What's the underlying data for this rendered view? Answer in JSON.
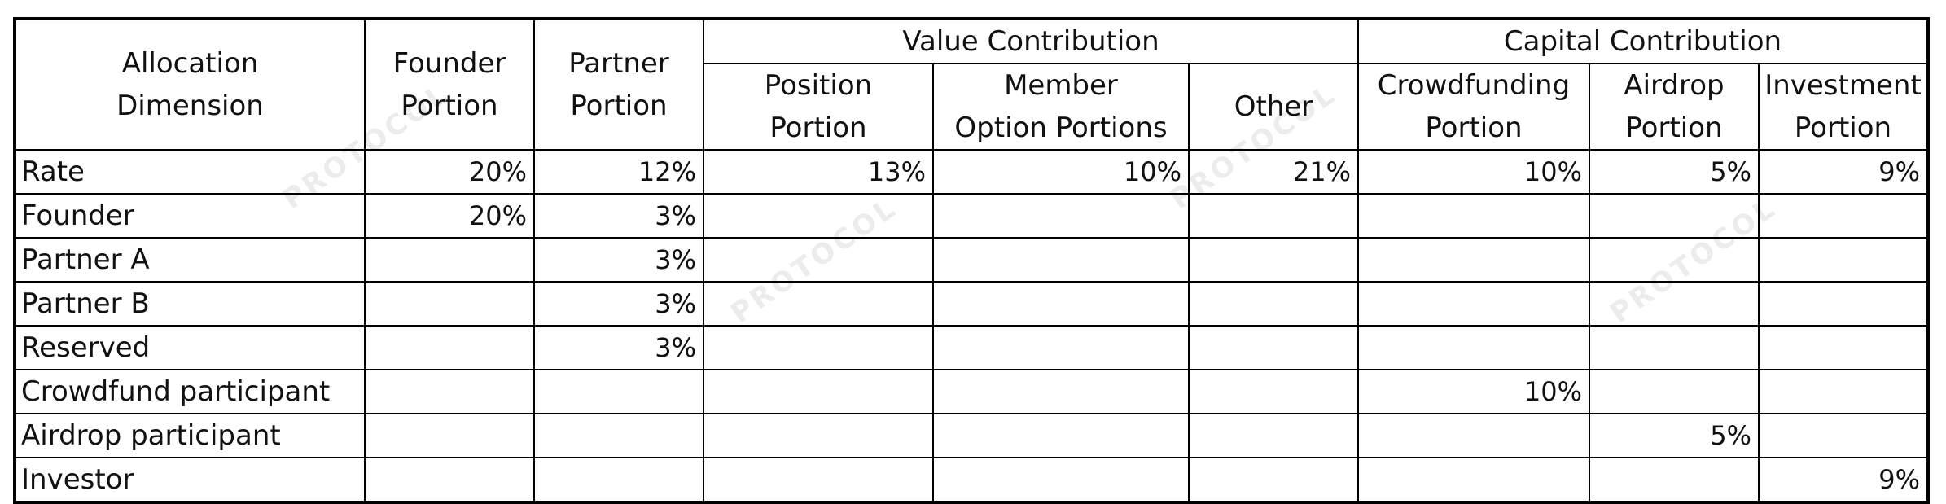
{
  "watermark_text": "PROTOCOL",
  "header": {
    "allocation_dimension": [
      "Allocation",
      "Dimension"
    ],
    "founder_portion": [
      "Founder",
      "Portion"
    ],
    "partner_portion": [
      "Partner",
      "Portion"
    ],
    "value_contribution": "Value Contribution",
    "capital_contribution": "Capital Contribution",
    "position_portion": [
      "Position",
      "Portion"
    ],
    "member_option_portions": [
      "Member",
      "Option Portions"
    ],
    "other": "Other",
    "crowdfunding_portion": [
      "Crowdfunding",
      "Portion"
    ],
    "airdrop_portion": [
      "Airdrop",
      "Portion"
    ],
    "investment_portion": [
      "Investment",
      "Portion"
    ]
  },
  "rows": [
    {
      "label": "Rate",
      "cells": [
        "20%",
        "12%",
        "13%",
        "10%",
        "21%",
        "10%",
        "5%",
        "9%"
      ]
    },
    {
      "label": "Founder",
      "cells": [
        "20%",
        "3%",
        "",
        "",
        "",
        "",
        "",
        ""
      ]
    },
    {
      "label": "Partner A",
      "cells": [
        "",
        "3%",
        "",
        "",
        "",
        "",
        "",
        ""
      ]
    },
    {
      "label": "Partner B",
      "cells": [
        "",
        "3%",
        "",
        "",
        "",
        "",
        "",
        ""
      ]
    },
    {
      "label": "Reserved",
      "cells": [
        "",
        "3%",
        "",
        "",
        "",
        "",
        "",
        ""
      ]
    },
    {
      "label": "Crowdfund participant",
      "cells": [
        "",
        "",
        "",
        "",
        "",
        "10%",
        "",
        ""
      ]
    },
    {
      "label": "Airdrop participant",
      "cells": [
        "",
        "",
        "",
        "",
        "",
        "",
        "5%",
        ""
      ]
    },
    {
      "label": "Investor",
      "cells": [
        "",
        "",
        "",
        "",
        "",
        "",
        "",
        "9%"
      ]
    }
  ]
}
